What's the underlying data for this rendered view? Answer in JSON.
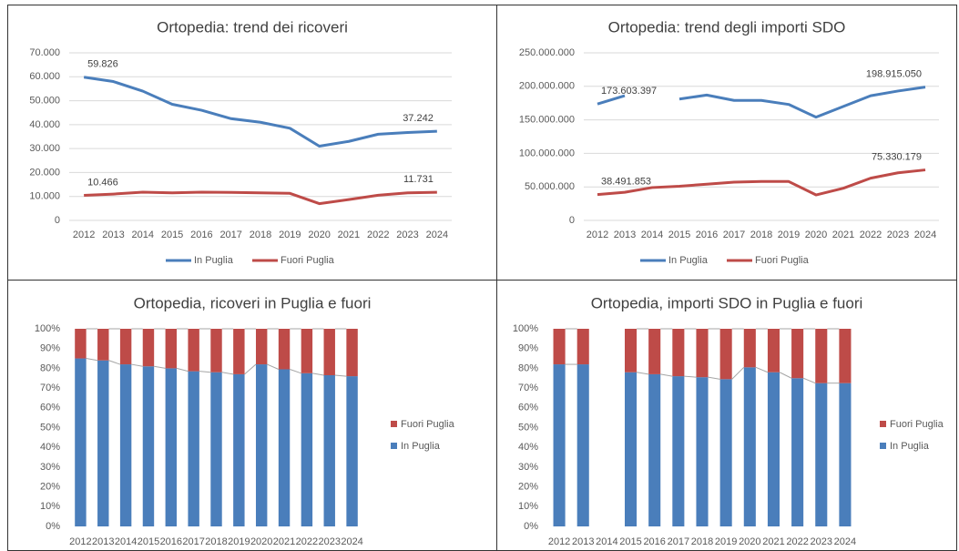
{
  "chart_data": [
    {
      "type": "line",
      "title": "Ortopedia: trend dei ricoveri",
      "categories": [
        "2012",
        "2013",
        "2014",
        "2015",
        "2016",
        "2017",
        "2018",
        "2019",
        "2020",
        "2021",
        "2022",
        "2023",
        "2024"
      ],
      "series": [
        {
          "name": "In Puglia",
          "color": "#4a7ebb",
          "values": [
            59826,
            58000,
            54000,
            48500,
            46000,
            42500,
            41000,
            38500,
            31000,
            33000,
            36000,
            36700,
            37242
          ],
          "value_labels": [
            "59.826",
            null,
            null,
            null,
            null,
            null,
            null,
            null,
            null,
            null,
            null,
            null,
            "37.242"
          ]
        },
        {
          "name": "Fuori Puglia",
          "color": "#be4b48",
          "values": [
            10466,
            11000,
            11800,
            11500,
            11800,
            11700,
            11500,
            11300,
            7000,
            8700,
            10500,
            11500,
            11731
          ],
          "value_labels": [
            "10.466",
            null,
            null,
            null,
            null,
            null,
            null,
            null,
            null,
            null,
            null,
            null,
            "11.731"
          ]
        }
      ],
      "ylim": [
        0,
        70000
      ],
      "yticks": [
        0,
        {
          "value": 10000,
          "label": "10.000"
        },
        {
          "value": 20000,
          "label": "20.000"
        },
        {
          "value": 30000,
          "label": "30.000"
        },
        {
          "value": 40000,
          "label": "40.000"
        },
        {
          "value": 50000,
          "label": "50.000"
        },
        {
          "value": 60000,
          "label": "60.000"
        },
        {
          "value": 70000,
          "label": "70.000"
        }
      ],
      "grid": true,
      "legend": "bottom"
    },
    {
      "type": "line",
      "title": "Ortopedia: trend degli importi SDO",
      "categories": [
        "2012",
        "2013",
        "2014",
        "2015",
        "2016",
        "2017",
        "2018",
        "2019",
        "2020",
        "2021",
        "2022",
        "2023",
        "2024"
      ],
      "series": [
        {
          "name": "In Puglia",
          "color": "#4a7ebb",
          "values": [
            173603397,
            186000000,
            null,
            181000000,
            187000000,
            179000000,
            179000000,
            173000000,
            154000000,
            170000000,
            186000000,
            193000000,
            198915050
          ],
          "value_labels": [
            "173.603.397",
            null,
            null,
            null,
            null,
            null,
            null,
            null,
            null,
            null,
            null,
            null,
            "198.915.050"
          ]
        },
        {
          "name": "Fuori Puglia",
          "color": "#be4b48",
          "values": [
            38491853,
            42000000,
            49000000,
            51000000,
            54000000,
            57000000,
            58000000,
            58000000,
            38000000,
            48000000,
            63000000,
            71000000,
            75330179
          ],
          "value_labels": [
            "38.491.853",
            null,
            null,
            null,
            null,
            null,
            null,
            null,
            null,
            null,
            null,
            null,
            "75.330.179"
          ]
        }
      ],
      "ylim": [
        0,
        250000000
      ],
      "yticks": [
        0,
        {
          "value": 50000000,
          "label": "50.000.000"
        },
        {
          "value": 100000000,
          "label": "100.000.000"
        },
        {
          "value": 150000000,
          "label": "150.000.000"
        },
        {
          "value": 200000000,
          "label": "200.000.000"
        },
        {
          "value": 250000000,
          "label": "250.000.000"
        }
      ],
      "grid": true,
      "legend": "bottom"
    },
    {
      "type": "bar",
      "stacked": true,
      "title": "Ortopedia, ricoveri in Puglia e fuori",
      "categories": [
        "2012",
        "2013",
        "2014",
        "2015",
        "2016",
        "2017",
        "2018",
        "2019",
        "2020",
        "2021",
        "2022",
        "2023",
        "2024"
      ],
      "series": [
        {
          "name": "In Puglia",
          "color": "#4a7ebb",
          "values": [
            85,
            84,
            82,
            81,
            80,
            78.5,
            78,
            77,
            82,
            79.5,
            77.5,
            76.5,
            76
          ]
        },
        {
          "name": "Fuori Puglia",
          "color": "#be4b48",
          "values": [
            15,
            16,
            18,
            19,
            20,
            21.5,
            22,
            23,
            18,
            20.5,
            22.5,
            23.5,
            24
          ]
        }
      ],
      "ylim": [
        0,
        100
      ],
      "yticks": [
        {
          "value": 0,
          "label": "0%"
        },
        {
          "value": 10,
          "label": "10%"
        },
        {
          "value": 20,
          "label": "20%"
        },
        {
          "value": 30,
          "label": "30%"
        },
        {
          "value": 40,
          "label": "40%"
        },
        {
          "value": 50,
          "label": "50%"
        },
        {
          "value": 60,
          "label": "60%"
        },
        {
          "value": 70,
          "label": "70%"
        },
        {
          "value": 80,
          "label": "80%"
        },
        {
          "value": 90,
          "label": "90%"
        },
        {
          "value": 100,
          "label": "100%"
        }
      ],
      "grid": false,
      "legend": "right"
    },
    {
      "type": "bar",
      "stacked": true,
      "title": "Ortopedia, importi SDO in Puglia e fuori",
      "categories": [
        "2012",
        "2013",
        "2014",
        "2015",
        "2016",
        "2017",
        "2018",
        "2019",
        "2020",
        "2021",
        "2022",
        "2023",
        "2024"
      ],
      "series": [
        {
          "name": "In Puglia",
          "color": "#4a7ebb",
          "values": [
            82,
            82,
            null,
            78,
            77,
            76,
            75.5,
            74.5,
            80.5,
            78,
            75,
            72.5,
            72.5
          ]
        },
        {
          "name": "Fuori Puglia",
          "color": "#be4b48",
          "values": [
            18,
            18,
            null,
            22,
            23,
            24,
            24.5,
            25.5,
            19.5,
            22,
            25,
            27.5,
            27.5
          ]
        }
      ],
      "ylim": [
        0,
        100
      ],
      "yticks": [
        {
          "value": 0,
          "label": "0%"
        },
        {
          "value": 10,
          "label": "10%"
        },
        {
          "value": 20,
          "label": "20%"
        },
        {
          "value": 30,
          "label": "30%"
        },
        {
          "value": 40,
          "label": "40%"
        },
        {
          "value": 50,
          "label": "50%"
        },
        {
          "value": 60,
          "label": "60%"
        },
        {
          "value": 70,
          "label": "70%"
        },
        {
          "value": 80,
          "label": "80%"
        },
        {
          "value": 90,
          "label": "90%"
        },
        {
          "value": 100,
          "label": "100%"
        }
      ],
      "grid": false,
      "legend": "right"
    }
  ]
}
